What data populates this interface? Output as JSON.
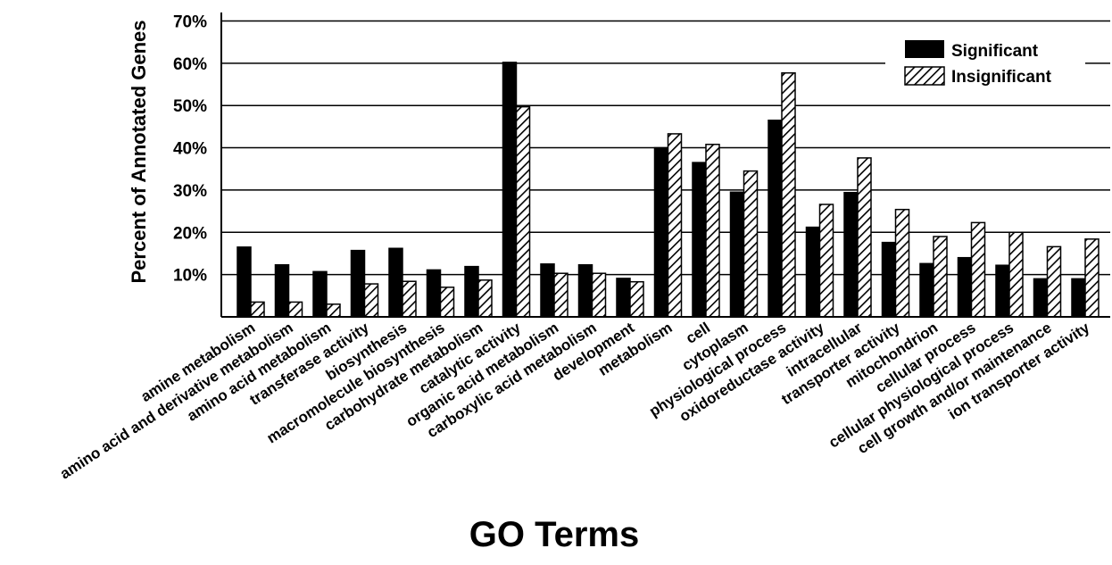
{
  "chart_data": {
    "type": "bar",
    "xlabel": "GO Terms",
    "ylabel": "Percent of Annotated Genes",
    "ylim": [
      0,
      72
    ],
    "yticks": [
      10,
      20,
      30,
      40,
      50,
      60,
      70
    ],
    "ytick_labels": [
      "10%",
      "20%",
      "30%",
      "40%",
      "50%",
      "60%",
      "70%"
    ],
    "grid": "horizontal",
    "legend_position": "top-right",
    "categories": [
      "amine metabolism",
      "amino acid and derivative metabolism",
      "amino acid metabolism",
      "transferase activity",
      "biosynthesis",
      "macromolecule biosynthesis",
      "carbohydrate metabolism",
      "catalytic activity",
      "organic acid metabolism",
      "carboxylic acid metabolism",
      "development",
      "metabolism",
      "cell",
      "cytoplasm",
      "physiological process",
      "oxidoreductase activity",
      "intracellular",
      "transporter activity",
      "mitochondrion",
      "cellular process",
      "cellular physiological process",
      "cell growth and/or maintenance",
      "ion transporter activity"
    ],
    "series": [
      {
        "name": "Significant",
        "fill": "solid",
        "color": "#000000",
        "values": [
          16.5,
          12.3,
          10.7,
          15.7,
          16.2,
          11.1,
          11.9,
          60.2,
          12.5,
          12.3,
          9.1,
          40.0,
          36.5,
          29.5,
          46.5,
          21.2,
          29.4,
          17.6,
          12.6,
          14.0,
          12.2,
          9.0,
          9.0
        ]
      },
      {
        "name": "Insignificant",
        "fill": "hatched",
        "color": "#000000",
        "values": [
          3.5,
          3.5,
          3.0,
          7.8,
          8.4,
          7.0,
          8.7,
          49.7,
          10.3,
          10.3,
          8.3,
          43.3,
          40.8,
          34.5,
          57.7,
          26.6,
          37.6,
          25.4,
          19.0,
          22.3,
          20.0,
          16.6,
          18.4
        ]
      }
    ]
  }
}
